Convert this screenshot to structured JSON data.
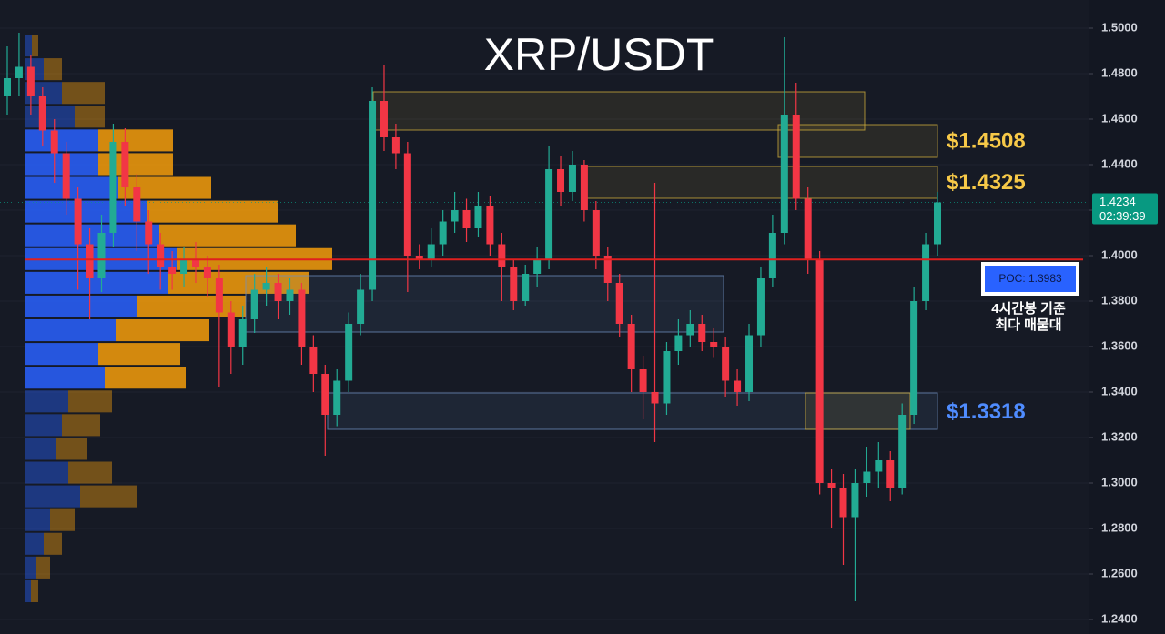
{
  "chart_data": {
    "type": "candlestick",
    "title": "XRP/USDT",
    "ylim": [
      1.2336,
      1.5124
    ],
    "yticks": [
      {
        "value": 1.24,
        "label": "1.2400"
      },
      {
        "value": 1.26,
        "label": "1.2600"
      },
      {
        "value": 1.28,
        "label": "1.2800"
      },
      {
        "value": 1.3,
        "label": "1.3000"
      },
      {
        "value": 1.32,
        "label": "1.3200"
      },
      {
        "value": 1.34,
        "label": "1.3400"
      },
      {
        "value": 1.36,
        "label": "1.3600"
      },
      {
        "value": 1.38,
        "label": "1.3800"
      },
      {
        "value": 1.4,
        "label": "1.4000"
      },
      {
        "value": 1.42,
        "label": "1.4200"
      },
      {
        "value": 1.44,
        "label": "1.4400"
      },
      {
        "value": 1.46,
        "label": "1.4600"
      },
      {
        "value": 1.48,
        "label": "1.4800"
      },
      {
        "value": 1.5,
        "label": "1.5000"
      }
    ],
    "grid": true,
    "up_color": "#22ab94",
    "down_color": "#f23645",
    "open": [
      1.47,
      1.478,
      1.483,
      1.47,
      1.455,
      1.445,
      1.425,
      1.405,
      1.39,
      1.41,
      1.45,
      1.43,
      1.415,
      1.405,
      1.395,
      1.392,
      1.398,
      1.395,
      1.39,
      1.375,
      1.36,
      1.372,
      1.385,
      1.388,
      1.38,
      1.385,
      1.36,
      1.348,
      1.33,
      1.345,
      1.37,
      1.385,
      1.468,
      1.452,
      1.445,
      1.4,
      1.398,
      1.405,
      1.415,
      1.42,
      1.412,
      1.422,
      1.405,
      1.395,
      1.38,
      1.392,
      1.398,
      1.438,
      1.428,
      1.44,
      1.42,
      1.4,
      1.388,
      1.37,
      1.35,
      1.34,
      1.335,
      1.358,
      1.365,
      1.37,
      1.362,
      1.36,
      1.345,
      1.34,
      1.365,
      1.39,
      1.41,
      1.462,
      1.425,
      1.398,
      1.3,
      1.298,
      1.285,
      1.3,
      1.305,
      1.31,
      1.298,
      1.33,
      1.38,
      1.405
    ],
    "high": [
      1.492,
      1.498,
      1.488,
      1.474,
      1.46,
      1.45,
      1.43,
      1.412,
      1.418,
      1.458,
      1.456,
      1.436,
      1.42,
      1.41,
      1.402,
      1.404,
      1.406,
      1.4,
      1.396,
      1.38,
      1.378,
      1.392,
      1.395,
      1.392,
      1.39,
      1.388,
      1.365,
      1.352,
      1.35,
      1.375,
      1.392,
      1.474,
      1.484,
      1.458,
      1.45,
      1.405,
      1.412,
      1.42,
      1.428,
      1.425,
      1.428,
      1.426,
      1.41,
      1.398,
      1.396,
      1.404,
      1.448,
      1.444,
      1.446,
      1.442,
      1.424,
      1.404,
      1.392,
      1.374,
      1.356,
      1.432,
      1.362,
      1.372,
      1.376,
      1.374,
      1.368,
      1.364,
      1.35,
      1.37,
      1.395,
      1.418,
      1.496,
      1.476,
      1.43,
      1.402,
      1.306,
      1.304,
      1.306,
      1.316,
      1.318,
      1.314,
      1.335,
      1.386,
      1.41,
      1.428
    ],
    "low": [
      1.462,
      1.47,
      1.462,
      1.448,
      1.432,
      1.418,
      1.385,
      1.372,
      1.384,
      1.404,
      1.422,
      1.402,
      1.392,
      1.385,
      1.385,
      1.386,
      1.388,
      1.382,
      1.342,
      1.348,
      1.352,
      1.366,
      1.378,
      1.372,
      1.374,
      1.352,
      1.34,
      1.312,
      1.325,
      1.34,
      1.365,
      1.38,
      1.446,
      1.438,
      1.384,
      1.394,
      1.395,
      1.4,
      1.41,
      1.406,
      1.408,
      1.4,
      1.38,
      1.376,
      1.378,
      1.386,
      1.394,
      1.422,
      1.424,
      1.415,
      1.394,
      1.38,
      1.364,
      1.34,
      1.328,
      1.318,
      1.33,
      1.352,
      1.36,
      1.358,
      1.355,
      1.338,
      1.334,
      1.336,
      1.36,
      1.386,
      1.405,
      1.42,
      1.392,
      1.295,
      1.28,
      1.264,
      1.248,
      1.294,
      1.298,
      1.292,
      1.295,
      1.326,
      1.376,
      1.4
    ],
    "close": [
      1.478,
      1.483,
      1.47,
      1.455,
      1.445,
      1.425,
      1.405,
      1.39,
      1.41,
      1.45,
      1.43,
      1.415,
      1.405,
      1.395,
      1.392,
      1.398,
      1.395,
      1.39,
      1.375,
      1.36,
      1.372,
      1.385,
      1.388,
      1.38,
      1.385,
      1.36,
      1.348,
      1.33,
      1.345,
      1.37,
      1.385,
      1.468,
      1.452,
      1.445,
      1.4,
      1.398,
      1.405,
      1.415,
      1.42,
      1.412,
      1.422,
      1.405,
      1.395,
      1.38,
      1.392,
      1.398,
      1.438,
      1.428,
      1.44,
      1.42,
      1.4,
      1.388,
      1.37,
      1.35,
      1.34,
      1.335,
      1.358,
      1.365,
      1.37,
      1.362,
      1.36,
      1.345,
      1.34,
      1.365,
      1.39,
      1.41,
      1.462,
      1.425,
      1.398,
      1.3,
      1.298,
      1.285,
      1.3,
      1.305,
      1.31,
      1.298,
      1.33,
      1.38,
      1.405,
      1.4234
    ],
    "volume_profile": {
      "range": [
        1.2472,
        1.4976
      ],
      "buy": [
        7,
        20,
        40,
        54,
        80,
        80,
        102,
        134,
        147,
        167,
        157,
        122,
        100,
        80,
        87,
        47,
        40,
        34,
        47,
        60,
        27,
        20,
        12,
        6
      ],
      "sell": [
        7,
        20,
        47,
        33,
        82,
        82,
        102,
        143,
        150,
        170,
        155,
        120,
        102,
        90,
        89,
        48,
        42,
        34,
        48,
        62,
        27,
        20,
        15,
        8
      ],
      "buy_color": "#2962ff",
      "sell_color": "#f59e0b",
      "value_area": [
        4,
        14
      ]
    },
    "zones": [
      {
        "top": 1.472,
        "bottom": 1.4552,
        "color": "#d4b13c"
      },
      {
        "top": 1.4576,
        "bottom": 1.4432,
        "color": "#d4b13c"
      },
      {
        "top": 1.4392,
        "bottom": 1.4252,
        "color": "#d4b13c"
      },
      {
        "top": 1.3912,
        "bottom": 1.3664,
        "color": "#6f8fc0"
      },
      {
        "top": 1.3396,
        "bottom": 1.3236,
        "color": "#6f8fc0"
      },
      {
        "top": 1.3396,
        "bottom": 1.3236,
        "color": "#d4b13c"
      }
    ],
    "annotations": [
      {
        "text": "$1.4508",
        "value": 1.4508,
        "color": "#f7c948"
      },
      {
        "text": "$1.4325",
        "value": 1.4325,
        "color": "#f7c948"
      },
      {
        "text": "$1.3318",
        "value": 1.3318,
        "color": "#4f8cff"
      }
    ],
    "poc": {
      "value": 1.3983,
      "label": "POC: 1.3983",
      "color": "#e0201e"
    },
    "last_price": {
      "value": 1.4234,
      "label": "1.4234",
      "countdown": "02:39:39",
      "color": "#089981"
    },
    "note": [
      "4시간봉 기준",
      "최다 매물대"
    ]
  }
}
